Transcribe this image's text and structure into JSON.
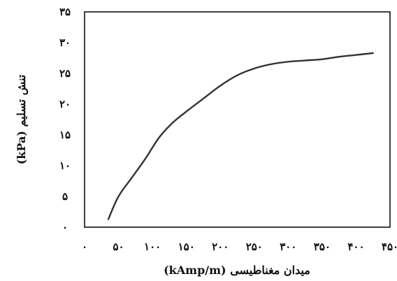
{
  "chart_data": {
    "type": "line",
    "title": "",
    "xlabel": "میدان مغناطیسی (kAmp/m)",
    "ylabel": "تنش تسلیم (kPa)",
    "xlim": [
      0,
      450
    ],
    "ylim": [
      0,
      35
    ],
    "x_ticks": [
      0,
      50,
      100,
      150,
      200,
      250,
      300,
      350,
      400,
      450
    ],
    "y_ticks": [
      0,
      5,
      10,
      15,
      20,
      25,
      30,
      35
    ],
    "x_tick_labels": [
      "۰",
      "۵۰",
      "۱۰۰",
      "۱۵۰",
      "۲۰۰",
      "۲۵۰",
      "۳۰۰",
      "۳۵۰",
      "۴۰۰",
      "۴۵۰"
    ],
    "y_tick_labels": [
      "۰",
      "۵",
      "۱۰",
      "۱۵",
      "۲۰",
      "۲۵",
      "۳۰",
      "۳۵"
    ],
    "grid": false,
    "line_color": "#333333",
    "series": [
      {
        "x": [
          35,
          50,
          70,
          90,
          110,
          130,
          150,
          175,
          200,
          225,
          250,
          275,
          300,
          325,
          350,
          375,
          400,
          425
        ],
        "y": [
          1.3,
          5.0,
          8.1,
          11.2,
          14.6,
          17.0,
          18.8,
          20.9,
          23.0,
          24.7,
          25.8,
          26.5,
          26.9,
          27.1,
          27.3,
          27.7,
          28.0,
          28.3
        ]
      }
    ]
  }
}
